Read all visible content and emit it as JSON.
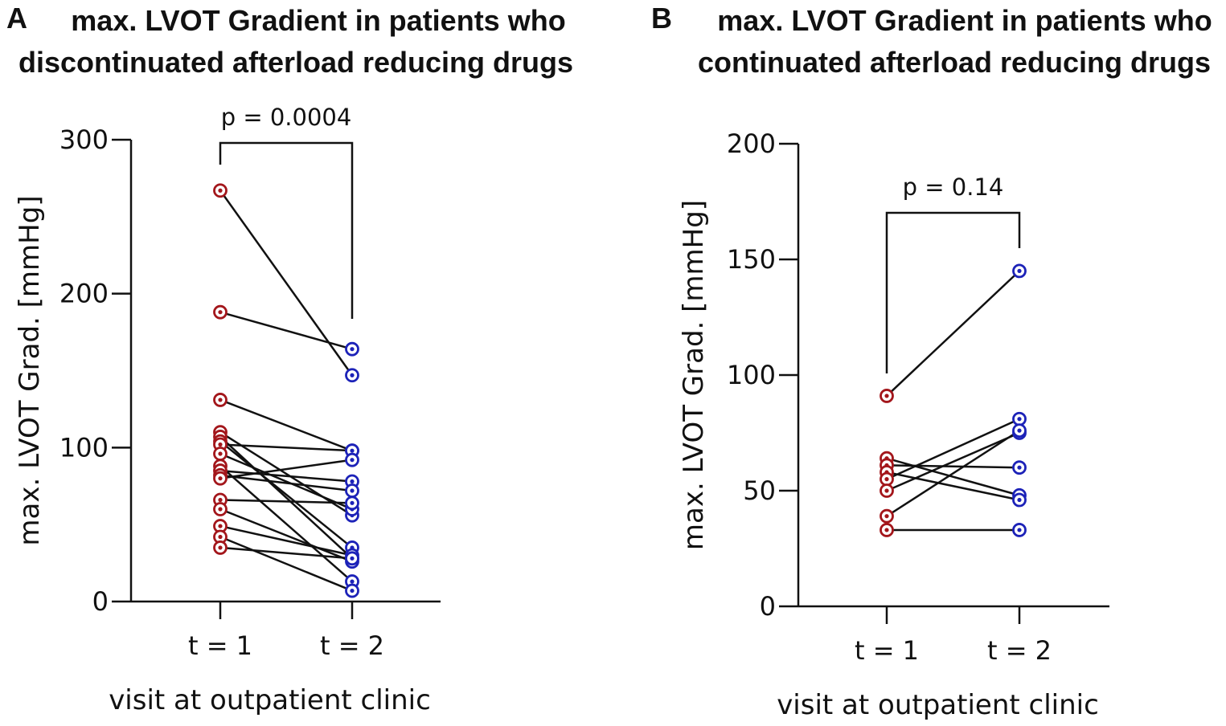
{
  "colors": {
    "t1": "#a3161b",
    "t2": "#1c22b8",
    "line": "#111111"
  },
  "chart_data": [
    {
      "type": "line",
      "panel_letter": "A",
      "title": "max. LVOT Gradient in patients who discontinuated afterload reducing drugs",
      "title_lines": [
        "max. LVOT Gradient in patients who",
        "discontinuated afterload reducing drugs"
      ],
      "categories": [
        "t = 1",
        "t = 2"
      ],
      "xlabel": "visit at outpatient clinic",
      "ylabel": "max. LVOT Grad. [mmHg]",
      "ylim": [
        0,
        300
      ],
      "yticks": [
        0,
        100,
        200,
        300
      ],
      "p_value": "p = 0.0004",
      "pairs": [
        [
          267,
          147
        ],
        [
          188,
          164
        ],
        [
          131,
          98
        ],
        [
          110,
          56
        ],
        [
          107,
          28
        ],
        [
          104,
          35
        ],
        [
          102,
          98
        ],
        [
          96,
          60
        ],
        [
          88,
          13
        ],
        [
          85,
          78
        ],
        [
          82,
          72
        ],
        [
          80,
          92
        ],
        [
          66,
          64
        ],
        [
          60,
          26
        ],
        [
          49,
          30
        ],
        [
          42,
          7
        ],
        [
          35,
          28
        ]
      ]
    },
    {
      "type": "line",
      "panel_letter": "B",
      "title": "max. LVOT Gradient in patients who continuated afterload reducing drugs",
      "title_lines": [
        "max. LVOT Gradient in patients who",
        "continuated afterload reducing drugs"
      ],
      "categories": [
        "t = 1",
        "t = 2"
      ],
      "xlabel": "visit at outpatient clinic",
      "ylabel": "max. LVOT Grad. [mmHg]",
      "ylim": [
        0,
        200
      ],
      "yticks": [
        0,
        50,
        100,
        150,
        200
      ],
      "p_value": "p = 0.14",
      "pairs": [
        [
          91,
          145
        ],
        [
          64,
          48
        ],
        [
          61,
          60
        ],
        [
          58,
          46
        ],
        [
          55,
          81
        ],
        [
          50,
          75
        ],
        [
          39,
          76
        ],
        [
          33,
          33
        ]
      ]
    }
  ]
}
